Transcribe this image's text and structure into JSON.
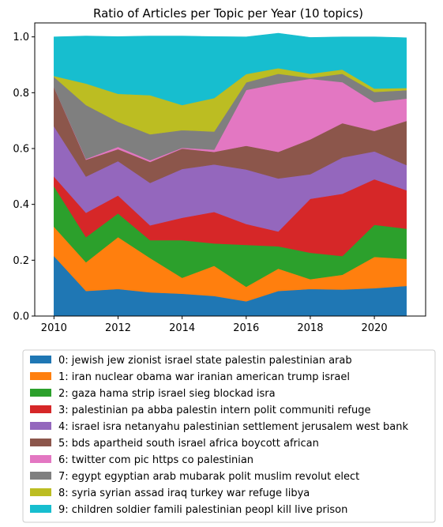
{
  "chart_data": {
    "type": "area",
    "stacked": true,
    "title": "Ratio of Articles per Topic per Year (10 topics)",
    "xlabel": "",
    "ylabel": "",
    "x": [
      2010,
      2011,
      2012,
      2013,
      2014,
      2015,
      2016,
      2017,
      2018,
      2019,
      2020,
      2021
    ],
    "xticks": [
      2010,
      2012,
      2014,
      2016,
      2018,
      2020
    ],
    "yticks": [
      0.0,
      0.2,
      0.4,
      0.6,
      0.8,
      1.0
    ],
    "ytick_labels": [
      "0.0",
      "0.2",
      "0.4",
      "0.6",
      "0.8",
      "1.0"
    ],
    "xlim": [
      2009.4,
      2021.6
    ],
    "ylim": [
      0.0,
      1.05
    ],
    "legend_position": "below",
    "series": [
      {
        "name": "0: jewish jew zionist israel state palestin palestinian arab",
        "color": "#1f77b4",
        "values": [
          0.215,
          0.09,
          0.097,
          0.085,
          0.08,
          0.072,
          0.053,
          0.09,
          0.097,
          0.095,
          0.1,
          0.108
        ]
      },
      {
        "name": "1: iran nuclear obama war iranian american trump israel",
        "color": "#ff7f0e",
        "values": [
          0.105,
          0.103,
          0.186,
          0.123,
          0.057,
          0.108,
          0.052,
          0.08,
          0.035,
          0.053,
          0.112,
          0.097
        ]
      },
      {
        "name": "2: gaza hama strip israel sieg blockad isra",
        "color": "#2ca02c",
        "values": [
          0.145,
          0.09,
          0.085,
          0.064,
          0.135,
          0.08,
          0.15,
          0.08,
          0.095,
          0.067,
          0.115,
          0.108
        ]
      },
      {
        "name": "3: palestinian pa abba palestin intern polit communiti refuge",
        "color": "#d62728",
        "values": [
          0.035,
          0.087,
          0.064,
          0.053,
          0.08,
          0.113,
          0.075,
          0.053,
          0.193,
          0.223,
          0.163,
          0.138
        ]
      },
      {
        "name": "4: israel isra netanyahu palestinian settlement jerusalem west bank",
        "color": "#9467bd",
        "values": [
          0.18,
          0.13,
          0.123,
          0.152,
          0.175,
          0.17,
          0.195,
          0.19,
          0.088,
          0.13,
          0.1,
          0.09
        ]
      },
      {
        "name": "5: bds apartheid south israel africa boycott african",
        "color": "#8c564b",
        "values": [
          0.14,
          0.06,
          0.043,
          0.075,
          0.073,
          0.045,
          0.085,
          0.095,
          0.125,
          0.123,
          0.073,
          0.158
        ]
      },
      {
        "name": "6: twitter com pic https co palestinian",
        "color": "#e377c2",
        "values": [
          0.0,
          0.003,
          0.008,
          0.006,
          0.003,
          0.008,
          0.2,
          0.245,
          0.217,
          0.147,
          0.103,
          0.08
        ]
      },
      {
        "name": "7: egypt egyptian arab mubarak polit muslim revolut elect",
        "color": "#7f7f7f",
        "values": [
          0.037,
          0.193,
          0.09,
          0.093,
          0.063,
          0.065,
          0.027,
          0.035,
          0.003,
          0.03,
          0.037,
          0.03
        ]
      },
      {
        "name": "8: syria syrian assad iraq turkey war refuge libya",
        "color": "#bcbd22",
        "values": [
          0.003,
          0.077,
          0.1,
          0.14,
          0.09,
          0.12,
          0.03,
          0.02,
          0.015,
          0.015,
          0.012,
          0.008
        ]
      },
      {
        "name": "9: children soldier famili palestinian peopl kill live prison",
        "color": "#17becf",
        "values": [
          0.14,
          0.17,
          0.205,
          0.212,
          0.247,
          0.22,
          0.133,
          0.125,
          0.13,
          0.117,
          0.185,
          0.18
        ]
      }
    ]
  }
}
